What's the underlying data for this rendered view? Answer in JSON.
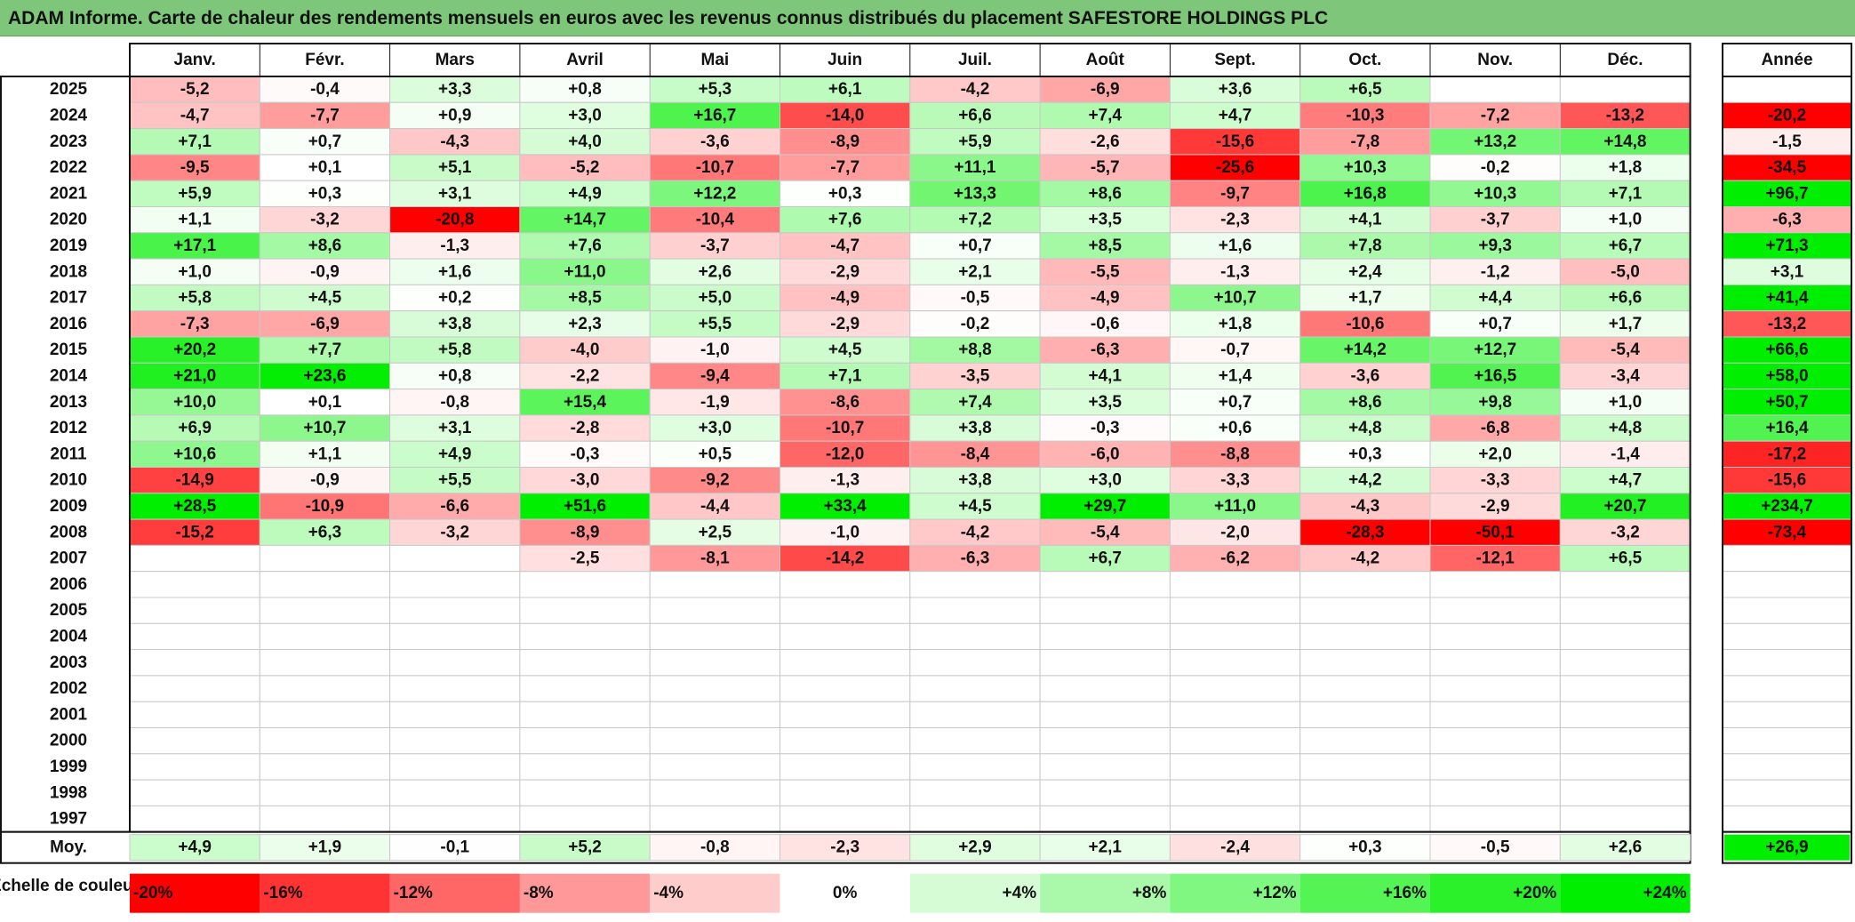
{
  "title": "ADAM Informe. Carte de chaleur des rendements mensuels en euros avec les revenus connus distribués du placement SAFESTORE HOLDINGS PLC",
  "colors": {
    "title_bg": "#7DC67A",
    "negative_max": "#FF0000",
    "positive_max": "#00EE00",
    "neutral": "#FFFFFF"
  },
  "chart_data": {
    "type": "heatmap",
    "months": [
      "Janv.",
      "Févr.",
      "Mars",
      "Avril",
      "Mai",
      "Juin",
      "Juil.",
      "Août",
      "Sept.",
      "Oct.",
      "Nov.",
      "Déc."
    ],
    "annual_label": "Année",
    "average_label": "Moy.",
    "rows": [
      {
        "year": "2025",
        "values": [
          "-5,2",
          "-0,4",
          "+3,3",
          "+0,8",
          "+5,3",
          "+6,1",
          "-4,2",
          "-6,9",
          "+3,6",
          "+6,5",
          "",
          ""
        ],
        "annual": ""
      },
      {
        "year": "2024",
        "values": [
          "-4,7",
          "-7,7",
          "+0,9",
          "+3,0",
          "+16,7",
          "-14,0",
          "+6,6",
          "+7,4",
          "+4,7",
          "-10,3",
          "-7,2",
          "-13,2"
        ],
        "annual": "-20,2"
      },
      {
        "year": "2023",
        "values": [
          "+7,1",
          "+0,7",
          "-4,3",
          "+4,0",
          "-3,6",
          "-8,9",
          "+5,9",
          "-2,6",
          "-15,6",
          "-7,8",
          "+13,2",
          "+14,8"
        ],
        "annual": "-1,5"
      },
      {
        "year": "2022",
        "values": [
          "-9,5",
          "+0,1",
          "+5,1",
          "-5,2",
          "-10,7",
          "-7,7",
          "+11,1",
          "-5,7",
          "-25,6",
          "+10,3",
          "-0,2",
          "+1,8"
        ],
        "annual": "-34,5"
      },
      {
        "year": "2021",
        "values": [
          "+5,9",
          "+0,3",
          "+3,1",
          "+4,9",
          "+12,2",
          "+0,3",
          "+13,3",
          "+8,6",
          "-9,7",
          "+16,8",
          "+10,3",
          "+7,1"
        ],
        "annual": "+96,7"
      },
      {
        "year": "2020",
        "values": [
          "+1,1",
          "-3,2",
          "-20,8",
          "+14,7",
          "-10,4",
          "+7,6",
          "+7,2",
          "+3,5",
          "-2,3",
          "+4,1",
          "-3,7",
          "+1,0"
        ],
        "annual": "-6,3"
      },
      {
        "year": "2019",
        "values": [
          "+17,1",
          "+8,6",
          "-1,3",
          "+7,6",
          "-3,7",
          "-4,7",
          "+0,7",
          "+8,5",
          "+1,6",
          "+7,8",
          "+9,3",
          "+6,7"
        ],
        "annual": "+71,3"
      },
      {
        "year": "2018",
        "values": [
          "+1,0",
          "-0,9",
          "+1,6",
          "+11,0",
          "+2,6",
          "-2,9",
          "+2,1",
          "-5,5",
          "-1,3",
          "+2,4",
          "-1,2",
          "-5,0"
        ],
        "annual": "+3,1"
      },
      {
        "year": "2017",
        "values": [
          "+5,8",
          "+4,5",
          "+0,2",
          "+8,5",
          "+5,0",
          "-4,9",
          "-0,5",
          "-4,9",
          "+10,7",
          "+1,7",
          "+4,4",
          "+6,6"
        ],
        "annual": "+41,4"
      },
      {
        "year": "2016",
        "values": [
          "-7,3",
          "-6,9",
          "+3,8",
          "+2,3",
          "+5,5",
          "-2,9",
          "-0,2",
          "-0,6",
          "+1,8",
          "-10,6",
          "+0,7",
          "+1,7"
        ],
        "annual": "-13,2"
      },
      {
        "year": "2015",
        "values": [
          "+20,2",
          "+7,7",
          "+5,8",
          "-4,0",
          "-1,0",
          "+4,5",
          "+8,8",
          "-6,3",
          "-0,7",
          "+14,2",
          "+12,7",
          "-5,4"
        ],
        "annual": "+66,6"
      },
      {
        "year": "2014",
        "values": [
          "+21,0",
          "+23,6",
          "+0,8",
          "-2,2",
          "-9,4",
          "+7,1",
          "-3,5",
          "+4,1",
          "+1,4",
          "-3,6",
          "+16,5",
          "-3,4"
        ],
        "annual": "+58,0"
      },
      {
        "year": "2013",
        "values": [
          "+10,0",
          "+0,1",
          "-0,8",
          "+15,4",
          "-1,9",
          "-8,6",
          "+7,4",
          "+3,5",
          "+0,7",
          "+8,6",
          "+9,8",
          "+1,0"
        ],
        "annual": "+50,7"
      },
      {
        "year": "2012",
        "values": [
          "+6,9",
          "+10,7",
          "+3,1",
          "-2,8",
          "+3,0",
          "-10,7",
          "+3,8",
          "-0,3",
          "+0,6",
          "+4,8",
          "-6,8",
          "+4,8"
        ],
        "annual": "+16,4"
      },
      {
        "year": "2011",
        "values": [
          "+10,6",
          "+1,1",
          "+4,9",
          "-0,3",
          "+0,5",
          "-12,0",
          "-8,4",
          "-6,0",
          "-8,8",
          "+0,3",
          "+2,0",
          "-1,4"
        ],
        "annual": "-17,2"
      },
      {
        "year": "2010",
        "values": [
          "-14,9",
          "-0,9",
          "+5,5",
          "-3,0",
          "-9,2",
          "-1,3",
          "+3,8",
          "+3,0",
          "-3,3",
          "+4,2",
          "-3,3",
          "+4,7"
        ],
        "annual": "-15,6"
      },
      {
        "year": "2009",
        "values": [
          "+28,5",
          "-10,9",
          "-6,6",
          "+51,6",
          "-4,4",
          "+33,4",
          "+4,5",
          "+29,7",
          "+11,0",
          "-4,3",
          "-2,9",
          "+20,7"
        ],
        "annual": "+234,7"
      },
      {
        "year": "2008",
        "values": [
          "-15,2",
          "+6,3",
          "-3,2",
          "-8,9",
          "+2,5",
          "-1,0",
          "-4,2",
          "-5,4",
          "-2,0",
          "-28,3",
          "-50,1",
          "-3,2"
        ],
        "annual": "-73,4"
      },
      {
        "year": "2007",
        "values": [
          "",
          "",
          "",
          "-2,5",
          "-8,1",
          "-14,2",
          "-6,3",
          "+6,7",
          "-6,2",
          "-4,2",
          "-12,1",
          "+6,5"
        ],
        "annual": ""
      },
      {
        "year": "2006",
        "values": [
          "",
          "",
          "",
          "",
          "",
          "",
          "",
          "",
          "",
          "",
          "",
          ""
        ],
        "annual": ""
      },
      {
        "year": "2005",
        "values": [
          "",
          "",
          "",
          "",
          "",
          "",
          "",
          "",
          "",
          "",
          "",
          ""
        ],
        "annual": ""
      },
      {
        "year": "2004",
        "values": [
          "",
          "",
          "",
          "",
          "",
          "",
          "",
          "",
          "",
          "",
          "",
          ""
        ],
        "annual": ""
      },
      {
        "year": "2003",
        "values": [
          "",
          "",
          "",
          "",
          "",
          "",
          "",
          "",
          "",
          "",
          "",
          ""
        ],
        "annual": ""
      },
      {
        "year": "2002",
        "values": [
          "",
          "",
          "",
          "",
          "",
          "",
          "",
          "",
          "",
          "",
          "",
          ""
        ],
        "annual": ""
      },
      {
        "year": "2001",
        "values": [
          "",
          "",
          "",
          "",
          "",
          "",
          "",
          "",
          "",
          "",
          "",
          ""
        ],
        "annual": ""
      },
      {
        "year": "2000",
        "values": [
          "",
          "",
          "",
          "",
          "",
          "",
          "",
          "",
          "",
          "",
          "",
          ""
        ],
        "annual": ""
      },
      {
        "year": "1999",
        "values": [
          "",
          "",
          "",
          "",
          "",
          "",
          "",
          "",
          "",
          "",
          "",
          ""
        ],
        "annual": ""
      },
      {
        "year": "1998",
        "values": [
          "",
          "",
          "",
          "",
          "",
          "",
          "",
          "",
          "",
          "",
          "",
          ""
        ],
        "annual": ""
      },
      {
        "year": "1997",
        "values": [
          "",
          "",
          "",
          "",
          "",
          "",
          "",
          "",
          "",
          "",
          "",
          ""
        ],
        "annual": ""
      }
    ],
    "averages": [
      "+4,9",
      "+1,9",
      "-0,1",
      "+5,2",
      "-0,8",
      "-2,3",
      "+2,9",
      "+2,1",
      "-2,4",
      "+0,3",
      "-0,5",
      "+2,6"
    ],
    "average_annual": "+26,9",
    "scale_label": "Echelle de couleur",
    "scale": [
      {
        "label": "-20%",
        "value": -20
      },
      {
        "label": "-16%",
        "value": -16
      },
      {
        "label": "-12%",
        "value": -12
      },
      {
        "label": "-8%",
        "value": -8
      },
      {
        "label": "-4%",
        "value": -4
      },
      {
        "label": "0%",
        "value": 0
      },
      {
        "label": "+4%",
        "value": 4
      },
      {
        "label": "+8%",
        "value": 8
      },
      {
        "label": "+12%",
        "value": 12
      },
      {
        "label": "+16%",
        "value": 16
      },
      {
        "label": "+20%",
        "value": 20
      },
      {
        "label": "+24%",
        "value": 24
      }
    ]
  }
}
